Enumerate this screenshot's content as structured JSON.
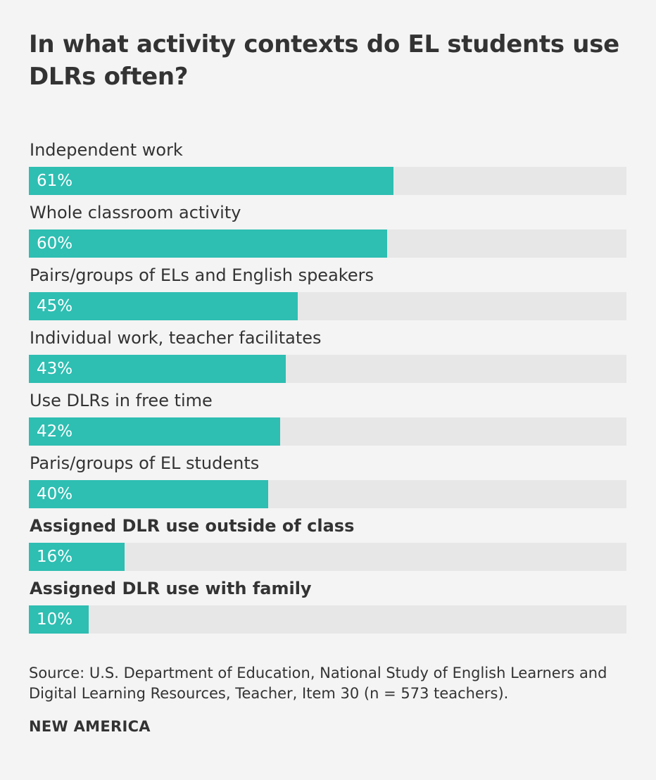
{
  "chart_data": {
    "type": "bar",
    "orientation": "horizontal",
    "title": "In what activity contexts do EL students use DLRs often?",
    "categories": [
      "Independent work",
      "Whole classroom activity",
      "Pairs/groups of ELs and English speakers",
      "Individual work, teacher facilitates",
      "Use DLRs in free time",
      "Paris/groups of EL students",
      "Assigned DLR use outside of class",
      "Assigned DLR use with family"
    ],
    "emphasized": [
      false,
      false,
      false,
      false,
      false,
      false,
      true,
      true
    ],
    "values": [
      61,
      60,
      45,
      43,
      42,
      40,
      16,
      10
    ],
    "value_labels": [
      "61%",
      "60%",
      "45%",
      "43%",
      "42%",
      "40%",
      "16%",
      "10%"
    ],
    "xlim": [
      0,
      100
    ],
    "unit": "%",
    "bar_color": "#2ebeb2",
    "track_color": "#e7e7e7",
    "grid": false
  },
  "source": "Source: U.S. Department of Education, National Study of English Learners and Digital Learning Resources, Teacher, Item 30 (n = 573 teachers).",
  "footer": "NEW AMERICA"
}
